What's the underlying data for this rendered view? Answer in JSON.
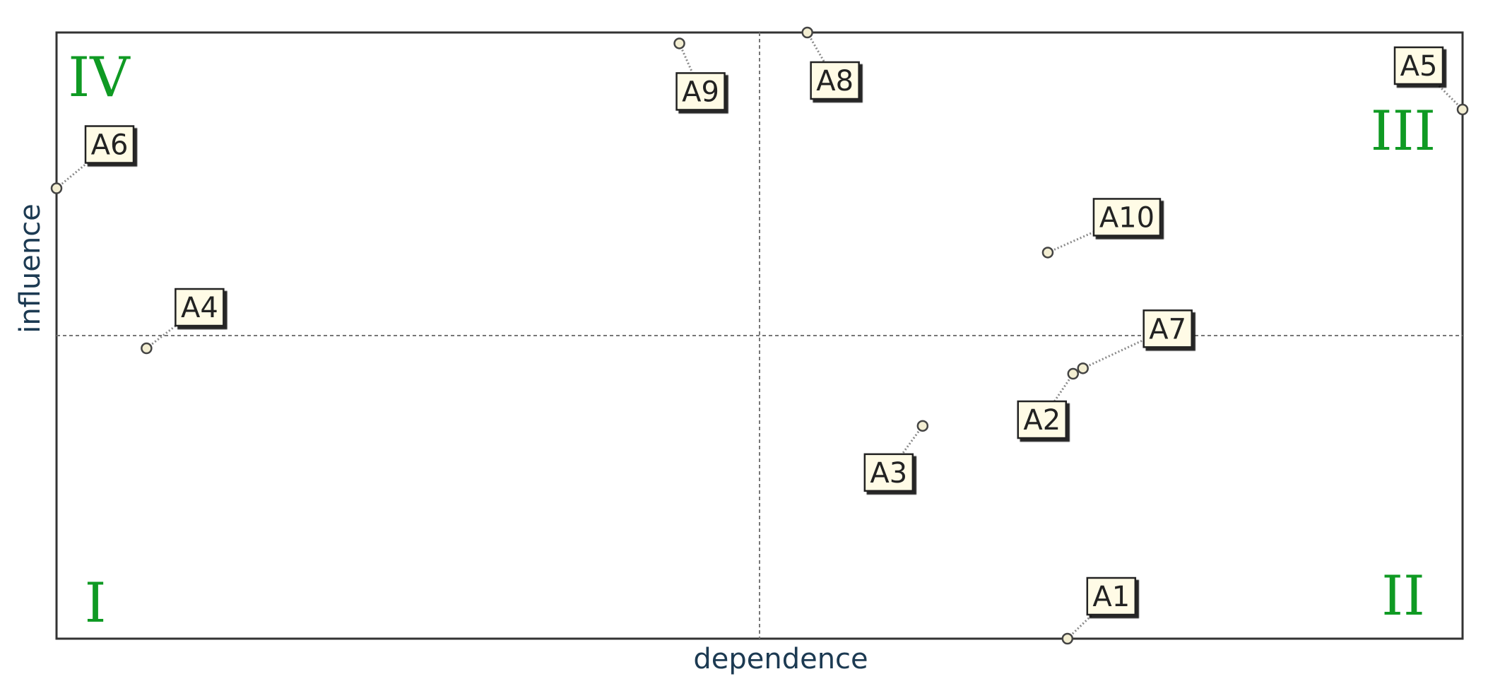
{
  "chart_data": {
    "type": "scatter",
    "xlabel": "dependence",
    "ylabel": "influence",
    "xlim": [
      0,
      1
    ],
    "ylim": [
      0,
      1
    ],
    "grid": false,
    "reference_lines": {
      "x": 0.5,
      "y": 0.5
    },
    "quadrant_labels": [
      "I",
      "II",
      "III",
      "IV"
    ],
    "points": [
      {
        "label": "A1",
        "x": 0.719,
        "y": 0.0
      },
      {
        "label": "A2",
        "x": 0.723,
        "y": 0.437
      },
      {
        "label": "A3",
        "x": 0.616,
        "y": 0.351
      },
      {
        "label": "A4",
        "x": 0.064,
        "y": 0.479
      },
      {
        "label": "A5",
        "x": 1.0,
        "y": 0.873
      },
      {
        "label": "A6",
        "x": 0.0,
        "y": 0.743
      },
      {
        "label": "A7",
        "x": 0.73,
        "y": 0.446
      },
      {
        "label": "A8",
        "x": 0.534,
        "y": 1.0
      },
      {
        "label": "A9",
        "x": 0.443,
        "y": 0.982
      },
      {
        "label": "A10",
        "x": 0.705,
        "y": 0.637
      }
    ]
  },
  "colors": {
    "quadrant_label": "#0f9a23",
    "axis_title": "#1c3a52",
    "point_fill": "#f3eed2",
    "label_fill": "#fffbe6",
    "frame": "#333333"
  }
}
